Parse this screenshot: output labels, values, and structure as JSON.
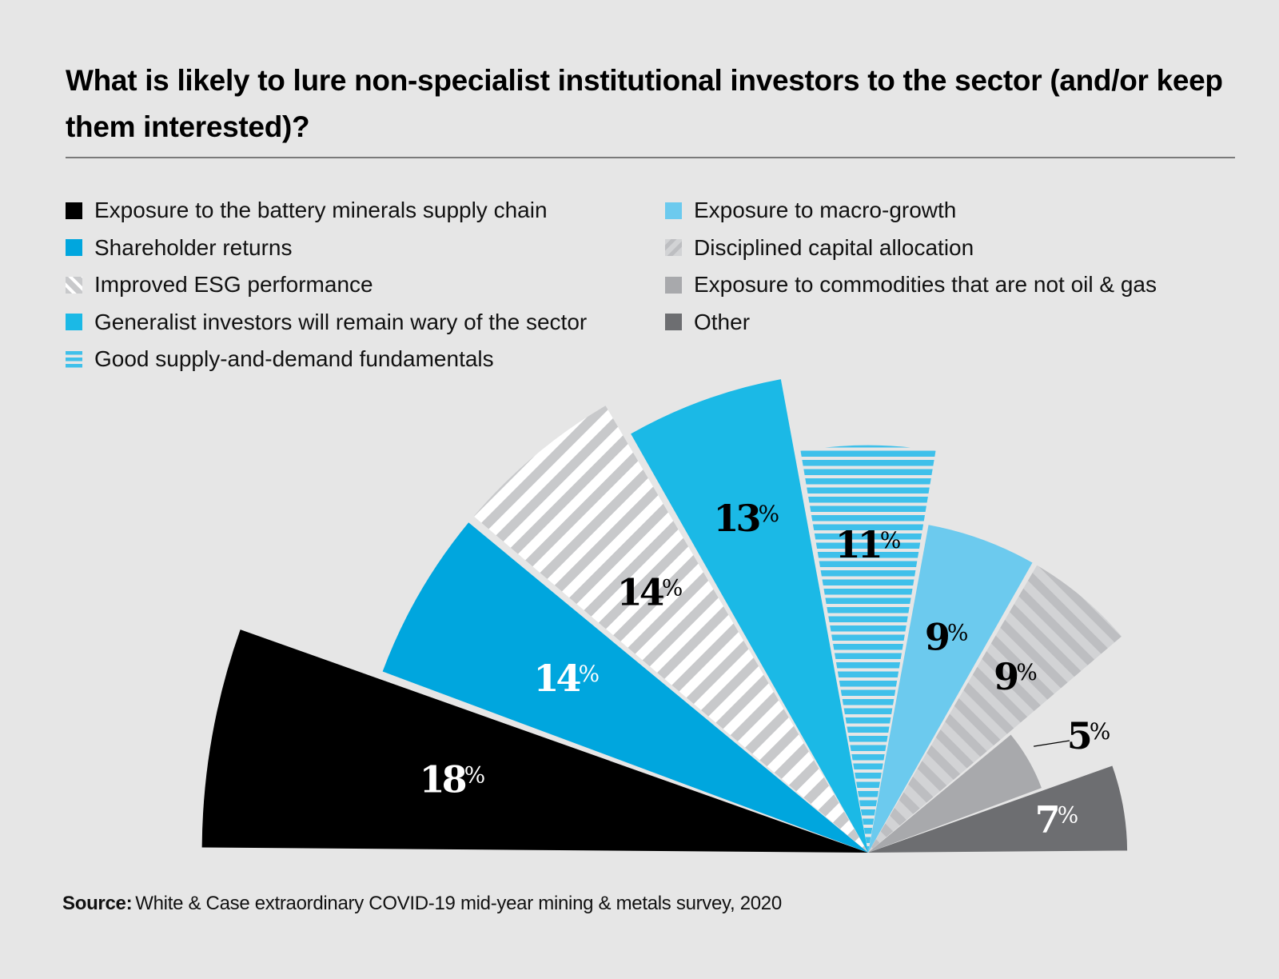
{
  "header": {
    "title": "What is likely to lure non-specialist institutional investors to the sector (and/or keep them interested)?"
  },
  "footer": {
    "source_label": "Source:",
    "source_text": "White & Case extraordinary COVID-19 mid-year mining & metals survey, 2020"
  },
  "legend": {
    "left": [
      {
        "label": "Exposure to the battery minerals supply chain",
        "key": "battery"
      },
      {
        "label": "Shareholder returns",
        "key": "shareholder"
      },
      {
        "label": "Improved ESG performance",
        "key": "esg"
      },
      {
        "label": "Generalist investors will remain wary of the sector",
        "key": "generalist"
      },
      {
        "label": "Good supply-and-demand fundamentals",
        "key": "supply"
      }
    ],
    "right": [
      {
        "label": "Exposure to macro-growth",
        "key": "macro"
      },
      {
        "label": "Disciplined capital allocation",
        "key": "disciplined"
      },
      {
        "label": "Exposure to commodities that are not oil & gas",
        "key": "commodities"
      },
      {
        "label": "Other",
        "key": "other"
      }
    ]
  },
  "colors": {
    "background": "#e6e6e6",
    "battery": "#000000",
    "shareholder": "#00a6de",
    "esg_stripe_a": "#ffffff",
    "esg_stripe_b": "#c8c9cb",
    "generalist": "#1bb9e6",
    "supply_stripe": "#3fc0ea",
    "macro": "#6ccaee",
    "disciplined_stripe_a": "#d2d3d5",
    "disciplined_stripe_b": "#bdbec1",
    "commodities": "#a8a9ac",
    "other": "#6d6e71"
  },
  "chart_data": {
    "type": "polar-area",
    "title": "What is likely to lure non-specialist institutional investors to the sector (and/or keep them interested)?",
    "unit": "%",
    "layout": "semicircle, clockwise from left",
    "categories": [
      "Exposure to the battery minerals supply chain",
      "Shareholder returns",
      "Improved ESG performance",
      "Generalist investors will remain wary of the sector",
      "Good supply-and-demand fundamentals",
      "Exposure to macro-growth",
      "Disciplined capital allocation",
      "Exposure to commodities that are not oil & gas",
      "Other"
    ],
    "values": [
      18,
      14,
      14,
      13,
      11,
      9,
      9,
      5,
      7
    ],
    "keys": [
      "battery",
      "shareholder",
      "esg",
      "generalist",
      "supply",
      "macro",
      "disciplined",
      "commodities",
      "other"
    ],
    "data_labels": [
      "18",
      "14",
      "14",
      "13",
      "11",
      "9",
      "9",
      "5",
      "7"
    ],
    "label_colors": [
      "#ffffff",
      "#ffffff",
      "#000000",
      "#000000",
      "#000000",
      "#000000",
      "#000000",
      "#000000",
      "#ffffff"
    ],
    "legend_position": "top"
  }
}
